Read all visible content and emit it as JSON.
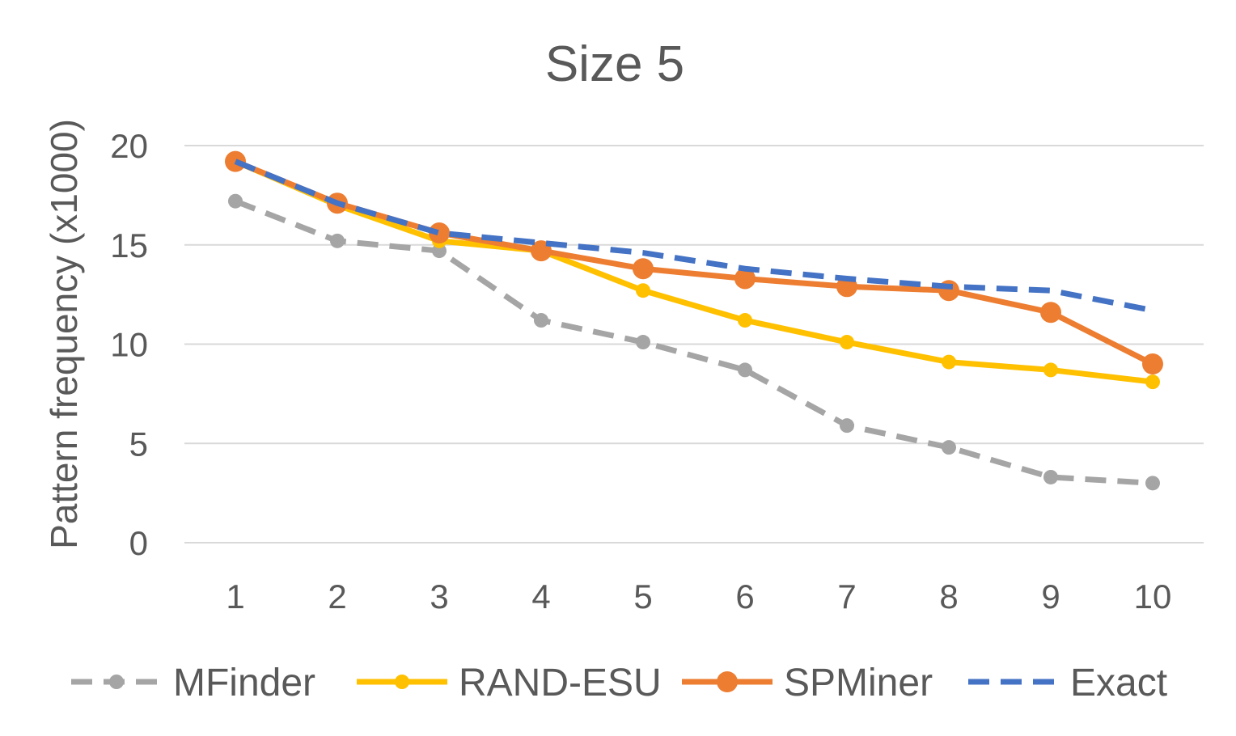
{
  "chart_data": {
    "type": "line",
    "title": "Size 5",
    "xlabel": "",
    "ylabel": "Pattern frequency (x1000)",
    "categories": [
      "1",
      "2",
      "3",
      "4",
      "5",
      "6",
      "7",
      "8",
      "9",
      "10"
    ],
    "ylim": [
      0,
      20
    ],
    "yticks": [
      0,
      5,
      10,
      15,
      20
    ],
    "ytick_labels": [
      "0",
      "5",
      "10",
      "15",
      "20"
    ],
    "grid": true,
    "legend_position": "bottom",
    "series": [
      {
        "name": "MFinder",
        "color": "#a5a5a5",
        "dashed": true,
        "marker": "small",
        "values": [
          17.2,
          15.2,
          14.7,
          11.2,
          10.1,
          8.7,
          5.9,
          4.8,
          3.3,
          3.0
        ]
      },
      {
        "name": "RAND-ESU",
        "color": "#ffc000",
        "dashed": false,
        "marker": "small",
        "values": [
          19.2,
          17.0,
          15.2,
          14.7,
          12.7,
          11.2,
          10.1,
          9.1,
          8.7,
          8.1
        ]
      },
      {
        "name": "SPMiner",
        "color": "#ed7d31",
        "dashed": false,
        "marker": "large",
        "values": [
          19.2,
          17.1,
          15.6,
          14.7,
          13.8,
          13.3,
          12.9,
          12.7,
          11.6,
          9.0
        ]
      },
      {
        "name": "Exact",
        "color": "#4472c4",
        "dashed": true,
        "marker": "none",
        "values": [
          19.2,
          17.1,
          15.6,
          15.1,
          14.6,
          13.8,
          13.3,
          12.9,
          12.7,
          11.7
        ]
      }
    ]
  }
}
